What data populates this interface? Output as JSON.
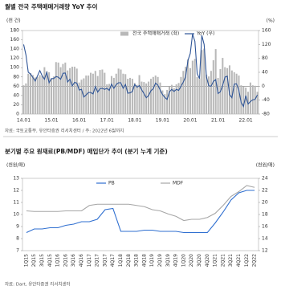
{
  "chart_data": [
    {
      "type": "combo",
      "title": "월별 전국 주택매매거래량 YoY 추이",
      "y_label": "(천 건)",
      "y2_label": "(%)",
      "source": "자료: 국토교통부, 유안타증권 리서치센터 / 주: 2022년 6월까지",
      "categories": [
        "14.01",
        null,
        null,
        null,
        null,
        null,
        null,
        null,
        null,
        null,
        null,
        null,
        "15.01",
        null,
        null,
        null,
        null,
        null,
        null,
        null,
        null,
        null,
        null,
        null,
        "16.01",
        null,
        null,
        null,
        null,
        null,
        null,
        null,
        null,
        null,
        null,
        null,
        "17.01",
        null,
        null,
        null,
        null,
        null,
        null,
        null,
        null,
        null,
        null,
        null,
        "18.01",
        null,
        null,
        null,
        null,
        null,
        null,
        null,
        null,
        null,
        null,
        null,
        "19.01",
        null,
        null,
        null,
        null,
        null,
        null,
        null,
        null,
        null,
        null,
        null,
        "20.01",
        null,
        null,
        null,
        null,
        null,
        null,
        null,
        null,
        null,
        null,
        null,
        "21.01",
        null,
        null,
        null,
        null,
        null,
        null,
        null,
        null,
        null,
        null,
        null,
        "22.01",
        null,
        null,
        null,
        null,
        null
      ],
      "ylim": [
        0,
        180
      ],
      "yticks": [
        0,
        20,
        40,
        60,
        80,
        100,
        120,
        140,
        160,
        180
      ],
      "y2lim": [
        -80,
        160
      ],
      "y2ticks": [
        -80,
        -40,
        0,
        40,
        80,
        120,
        160
      ],
      "series": [
        {
          "name": "전국 주택매매거래 (좌)",
          "type": "bar",
          "color": "#b8b8b8",
          "values": [
            62,
            66,
            87,
            88,
            84,
            79,
            80,
            84,
            82,
            101,
            92,
            90,
            76,
            81,
            112,
            111,
            101,
            108,
            111,
            94,
            99,
            102,
            102,
            98,
            68,
            74,
            77,
            83,
            83,
            89,
            87,
            93,
            82,
            95,
            96,
            89,
            64,
            65,
            82,
            78,
            87,
            98,
            96,
            87,
            86,
            76,
            78,
            76,
            67,
            63,
            84,
            70,
            69,
            66,
            70,
            76,
            80,
            83,
            80,
            68,
            51,
            43,
            52,
            59,
            63,
            56,
            64,
            67,
            80,
            93,
            102,
            118,
            99,
            115,
            119,
            80,
            77,
            138,
            141,
            85,
            81,
            93,
            116,
            140,
            78,
            97,
            121,
            101,
            99,
            105,
            94,
            90,
            87,
            83,
            62,
            59,
            57,
            48,
            68,
            62,
            61,
            48
          ]
        },
        {
          "name": "YoY (우)",
          "type": "line",
          "axis": "y2",
          "color": "#2f5597",
          "values": [
            120,
            90,
            40,
            35,
            25,
            15,
            30,
            45,
            30,
            20,
            40,
            10,
            22,
            22,
            28,
            26,
            20,
            37,
            38,
            12,
            20,
            1,
            11,
            9,
            -11,
            -9,
            -31,
            -25,
            -18,
            -18,
            -22,
            -1,
            -17,
            -7,
            -6,
            -9,
            -6,
            -12,
            6,
            -6,
            5,
            10,
            10,
            -6,
            5,
            -20,
            -19,
            -15,
            5,
            -3,
            2,
            -10,
            -21,
            -33,
            -27,
            -13,
            -7,
            9,
            3,
            -11,
            -24,
            -32,
            -38,
            -16,
            -9,
            -15,
            -9,
            -12,
            0,
            12,
            27,
            74,
            94,
            150,
            129,
            36,
            22,
            146,
            120,
            27,
            1,
            0,
            14,
            19,
            -21,
            -16,
            2,
            26,
            29,
            -24,
            -33,
            6,
            7,
            -11,
            -47,
            -58,
            -27,
            -51,
            -44,
            -39,
            -38,
            -25
          ]
        }
      ]
    },
    {
      "type": "line",
      "title": "분기별 주요 원재료(PB/MDF) 매입단가 추이 (분기 누계 기준)",
      "y_label": "(천원/매)",
      "y2_label": "(천원/매)",
      "source": "자료: Dart, 유안타증권 리서치센터",
      "categories": [
        "1Q15",
        "2Q15",
        "3Q15",
        "4Q15",
        "1Q16",
        "2Q16",
        "3Q16",
        "4Q16",
        "1Q17",
        "2Q17",
        "3Q17",
        "4Q17",
        "1Q18",
        "2Q18",
        "3Q18",
        "4Q18",
        "1Q19",
        "2Q19",
        "3Q19",
        "4Q19",
        "1Q20",
        "2Q20",
        "3Q20",
        "4Q20",
        "1Q21",
        "2Q21",
        "3Q21",
        "4Q21",
        "1Q22",
        "2Q22"
      ],
      "ylim": [
        7,
        13
      ],
      "yticks": [
        7,
        8,
        9,
        10,
        11,
        12,
        13
      ],
      "y2lim": [
        12,
        24
      ],
      "y2ticks": [
        12,
        14,
        16,
        18,
        20,
        22,
        24
      ],
      "series": [
        {
          "name": "PB",
          "color": "#2f6fd0",
          "values": [
            8.5,
            8.8,
            8.8,
            8.9,
            8.9,
            9.1,
            9.2,
            9.4,
            9.4,
            9.6,
            10.4,
            10.5,
            8.6,
            8.6,
            8.6,
            8.7,
            8.7,
            8.6,
            8.6,
            8.6,
            8.5,
            8.5,
            8.5,
            8.5,
            9.3,
            10.2,
            11.2,
            11.8,
            12.0,
            12.0
          ]
        },
        {
          "name": "MDF",
          "axis": "y2",
          "color": "#a6a6a6",
          "values": [
            18.6,
            18.5,
            18.5,
            18.5,
            18.5,
            18.6,
            18.6,
            18.6,
            19.5,
            19.7,
            19.7,
            19.7,
            19.7,
            19.7,
            19.5,
            19.3,
            18.8,
            18.6,
            18.1,
            17.7,
            17.0,
            17.2,
            17.2,
            17.5,
            18.2,
            19.5,
            21.0,
            21.8,
            22.8,
            22.5
          ]
        }
      ]
    }
  ]
}
